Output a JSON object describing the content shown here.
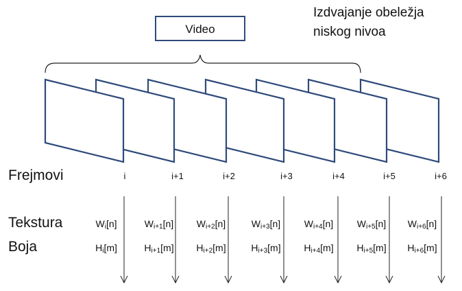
{
  "annotation": {
    "line1": "Izdvajanje obeležja",
    "line2": "niskog nivoa"
  },
  "video_label": "Video",
  "row_labels": {
    "frames": "Frejmovi",
    "texture": "Tekstura",
    "color": "Boja"
  },
  "frames": [
    {
      "index": "i",
      "texture_base": "W",
      "texture_sub": "i",
      "texture_tail": "[n]",
      "color_base": "H",
      "color_sub": "i",
      "color_tail": "[m]"
    },
    {
      "index": "i+1",
      "texture_base": "W",
      "texture_sub": "i+1",
      "texture_tail": "[n]",
      "color_base": "H",
      "color_sub": "i+1",
      "color_tail": "[m]"
    },
    {
      "index": "i+2",
      "texture_base": "W",
      "texture_sub": "i+2",
      "texture_tail": "[n]",
      "color_base": "H",
      "color_sub": "i+2",
      "color_tail": "[m]"
    },
    {
      "index": "i+3",
      "texture_base": "W",
      "texture_sub": "i+3",
      "texture_tail": "[n]",
      "color_base": "H",
      "color_sub": "i+3",
      "color_tail": "[m]"
    },
    {
      "index": "i+4",
      "texture_base": "W",
      "texture_sub": "i+4",
      "texture_tail": "[n]",
      "color_base": "H",
      "color_sub": "i+4",
      "color_tail": "[m]"
    },
    {
      "index": "i+5",
      "texture_base": "W",
      "texture_sub": "i+5",
      "texture_tail": "[n]",
      "color_base": "H",
      "color_sub": "i+5",
      "color_tail": "[m]"
    },
    {
      "index": "i+6",
      "texture_base": "W",
      "texture_sub": "i+6",
      "texture_tail": "[n]",
      "color_base": "H",
      "color_sub": "i+6",
      "color_tail": "[m]"
    }
  ],
  "colors": {
    "frame_stroke": "#2e4a7a",
    "line": "#222222",
    "background": "#ffffff"
  }
}
